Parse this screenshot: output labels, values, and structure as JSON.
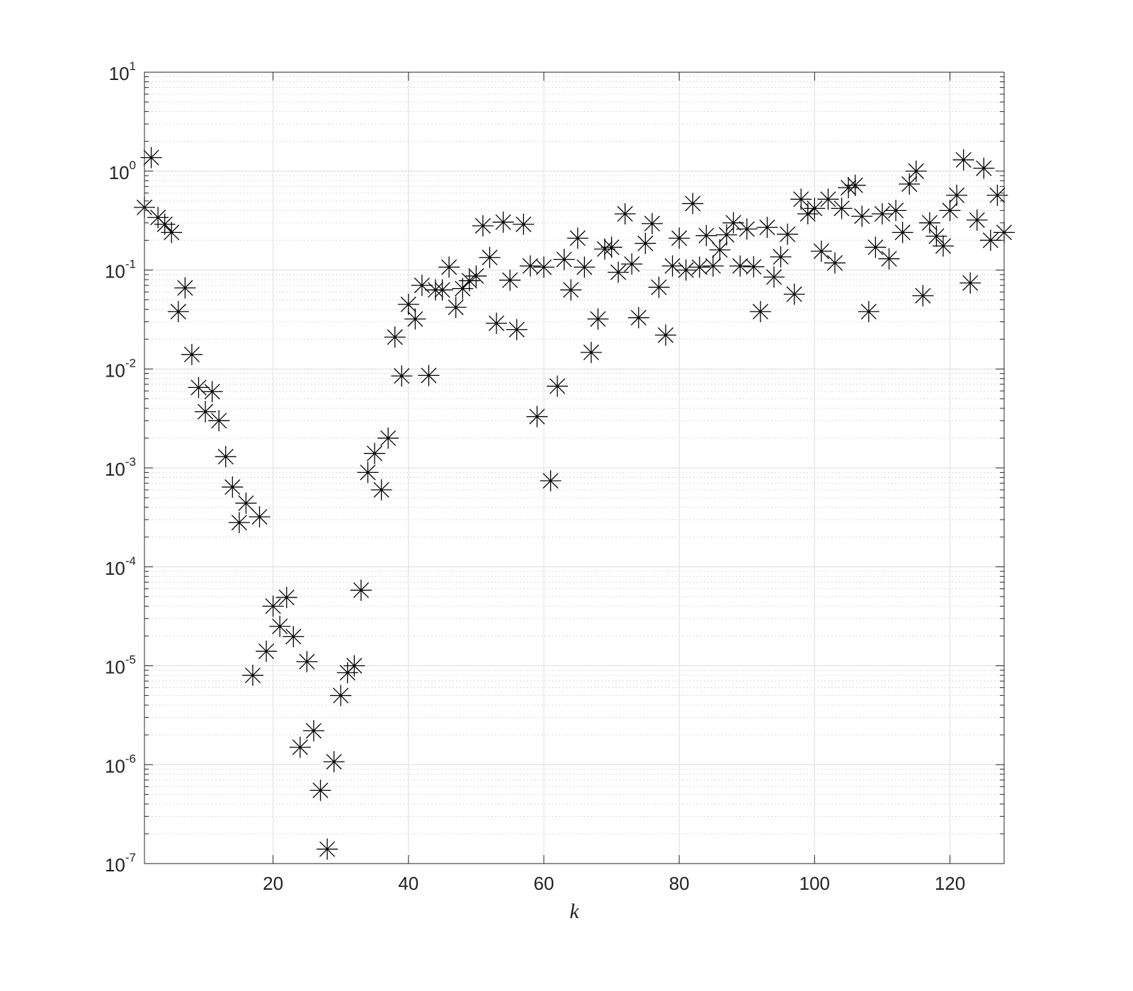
{
  "chart_data": {
    "type": "scatter",
    "marker": "asterisk",
    "color": "#000000",
    "x_label": "k",
    "log_y": true,
    "grid": true,
    "minor_grid": true,
    "xlim": [
      1,
      128
    ],
    "xticks": [
      20,
      40,
      60,
      80,
      100,
      120
    ],
    "ylim": [
      1e-07,
      10
    ],
    "yticks": [
      {
        "value": 1e-07,
        "label": "10^-7"
      },
      {
        "value": 1e-06,
        "label": "10^-6"
      },
      {
        "value": 1e-05,
        "label": "10^-5"
      },
      {
        "value": 0.0001,
        "label": "10^-4"
      },
      {
        "value": 0.001,
        "label": "10^-3"
      },
      {
        "value": 0.01,
        "label": "10^-2"
      },
      {
        "value": 0.1,
        "label": "10^-1"
      },
      {
        "value": 1,
        "label": "10^0"
      },
      {
        "value": 10,
        "label": "10^1"
      }
    ],
    "x": [
      1,
      2,
      3,
      4,
      5,
      6,
      7,
      8,
      9,
      10,
      11,
      12,
      13,
      14,
      15,
      16,
      17,
      18,
      19,
      20,
      21,
      22,
      23,
      24,
      25,
      26,
      27,
      28,
      29,
      30,
      31,
      32,
      33,
      34,
      35,
      36,
      37,
      38,
      39,
      40,
      41,
      42,
      43,
      44,
      45,
      46,
      47,
      48,
      49,
      50,
      51,
      52,
      53,
      54,
      55,
      56,
      57,
      58,
      59,
      60,
      61,
      62,
      63,
      64,
      65,
      66,
      67,
      68,
      69,
      70,
      71,
      72,
      73,
      74,
      75,
      76,
      77,
      78,
      79,
      80,
      81,
      82,
      83,
      84,
      85,
      86,
      87,
      88,
      89,
      90,
      91,
      92,
      93,
      94,
      95,
      96,
      97,
      98,
      99,
      100,
      101,
      102,
      103,
      104,
      105,
      106,
      107,
      108,
      109,
      110,
      111,
      112,
      113,
      114,
      115,
      116,
      117,
      118,
      119,
      120,
      121,
      122,
      123,
      124,
      125,
      126,
      127,
      128
    ],
    "values": [
      0.43,
      1.37,
      0.34,
      0.29,
      0.24,
      0.038,
      0.066,
      0.014,
      0.0065,
      0.0037,
      0.0059,
      0.003,
      0.0013,
      0.00064,
      0.00028,
      0.00044,
      8e-06,
      0.00032,
      1.4e-05,
      4e-05,
      2.5e-05,
      4.9e-05,
      1.97e-05,
      1.5e-06,
      1.1e-05,
      2.2e-06,
      5.5e-07,
      1.4e-07,
      1.07e-06,
      5e-06,
      8.5e-06,
      1e-05,
      5.8e-05,
      0.0009,
      0.0014,
      0.0006,
      0.002,
      0.021,
      0.0085,
      0.045,
      0.032,
      0.07,
      0.0086,
      0.063,
      0.063,
      0.107,
      0.042,
      0.065,
      0.078,
      0.087,
      0.28,
      0.134,
      0.029,
      0.305,
      0.079,
      0.025,
      0.29,
      0.11,
      0.0033,
      0.107,
      0.00074,
      0.0067,
      0.128,
      0.063,
      0.21,
      0.107,
      0.0147,
      0.032,
      0.163,
      0.17,
      0.095,
      0.37,
      0.115,
      0.033,
      0.186,
      0.295,
      0.067,
      0.022,
      0.11,
      0.21,
      0.1,
      0.47,
      0.107,
      0.223,
      0.11,
      0.16,
      0.227,
      0.3,
      0.11,
      0.26,
      0.108,
      0.038,
      0.27,
      0.085,
      0.136,
      0.23,
      0.057,
      0.52,
      0.37,
      0.42,
      0.155,
      0.52,
      0.118,
      0.42,
      0.68,
      0.72,
      0.35,
      0.038,
      0.17,
      0.37,
      0.13,
      0.4,
      0.24,
      0.74,
      1.0,
      0.055,
      0.3,
      0.22,
      0.175,
      0.4,
      0.57,
      1.3,
      0.074,
      0.32,
      1.07,
      0.2,
      0.57,
      0.24
    ]
  }
}
